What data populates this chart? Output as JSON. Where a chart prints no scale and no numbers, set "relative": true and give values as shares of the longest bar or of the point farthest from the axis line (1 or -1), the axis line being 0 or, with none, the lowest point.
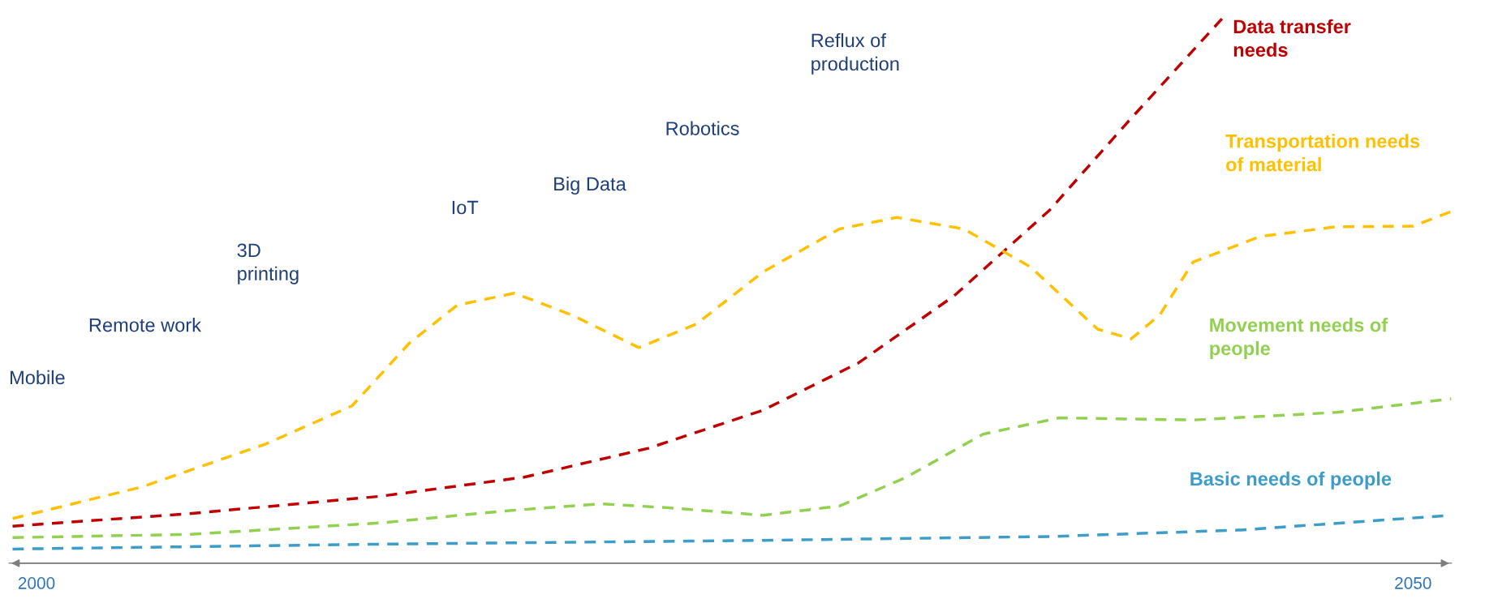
{
  "chart_data": {
    "type": "line",
    "relative": true,
    "line_style": "dashed",
    "marker": "none",
    "grid": false,
    "legend": false,
    "tick_labels": "x",
    "xlim": [
      1999,
      2051.4
    ],
    "xticks": [
      2000,
      2050
    ],
    "annotations": [
      "Mobile",
      "Remote work",
      "3D\nprinting",
      "IoT",
      "Big Data",
      "Robotics",
      "Reflux of\nproduction"
    ],
    "series": [
      {
        "name": "Data transfer\nneeds",
        "color": "#c00000",
        "x": [
          1999.13,
          2005.56,
          2012.5,
          2017.71,
          2022.22,
          2026.39,
          2029.86,
          2033.33,
          2036.81,
          2039.58,
          2043.06
        ],
        "values": [
          0.068,
          0.091,
          0.123,
          0.158,
          0.211,
          0.281,
          0.368,
          0.491,
          0.649,
          0.807,
          1.0
        ]
      },
      {
        "name": "Transportation needs\nof material",
        "color": "#ffc000",
        "x": [
          1999.13,
          2003.82,
          2008.33,
          2011.46,
          2013.54,
          2015.28,
          2017.36,
          2019.44,
          2021.88,
          2023.96,
          2026.39,
          2029.17,
          2031.25,
          2033.68,
          2036.11,
          2038.54,
          2039.76,
          2040.8,
          2042.01,
          2044.44,
          2047.22,
          2050,
          2051.39
        ],
        "values": [
          0.082,
          0.14,
          0.219,
          0.289,
          0.404,
          0.474,
          0.496,
          0.456,
          0.396,
          0.439,
          0.535,
          0.614,
          0.635,
          0.614,
          0.544,
          0.43,
          0.412,
          0.456,
          0.553,
          0.6,
          0.618,
          0.619,
          0.646
        ]
      },
      {
        "name": "Movement needs of\npeople",
        "color": "#92d050",
        "x": [
          1999.13,
          2005.56,
          2012.5,
          2017.01,
          2020.49,
          2022.92,
          2026.39,
          2029.17,
          2031.6,
          2034.38,
          2037.15,
          2042.01,
          2047.22,
          2051.39
        ],
        "values": [
          0.047,
          0.053,
          0.074,
          0.096,
          0.109,
          0.102,
          0.088,
          0.105,
          0.158,
          0.237,
          0.267,
          0.263,
          0.277,
          0.302
        ]
      },
      {
        "name": "Basic needs of people",
        "color": "#3d9cc8",
        "x": [
          1999.13,
          2012.5,
          2026.39,
          2036.81,
          2043.75,
          2051.39
        ],
        "values": [
          0.026,
          0.035,
          0.042,
          0.049,
          0.061,
          0.088
        ]
      }
    ]
  }
}
